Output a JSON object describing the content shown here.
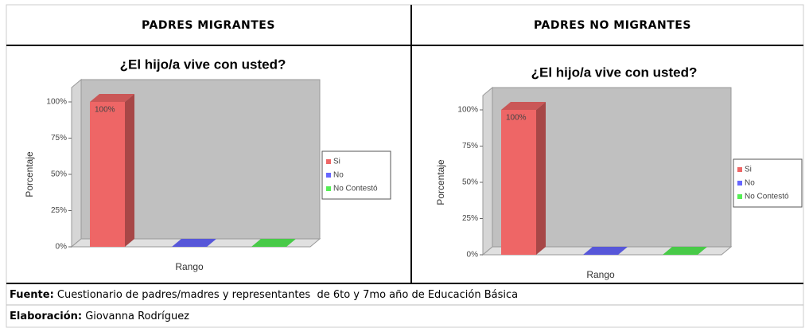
{
  "headers": [
    "PADRES MIGRANTES",
    "PADRES NO MIGRANTES"
  ],
  "chart_data": [
    {
      "type": "bar3d",
      "title": "¿El hijo/a vive con usted?",
      "ylabel": "Porcentaje",
      "xlabel": "Rango",
      "ylim": [
        0,
        100
      ],
      "yticks": [
        {
          "value": 0,
          "label": "0%"
        },
        {
          "value": 25,
          "label": "25%"
        },
        {
          "value": 50,
          "label": "50%"
        },
        {
          "value": 75,
          "label": "75%"
        },
        {
          "value": 100,
          "label": "100%"
        }
      ],
      "series": [
        {
          "name": "Si",
          "color": "#ee6666",
          "values": [
            100
          ],
          "value_labels": [
            "100%"
          ]
        },
        {
          "name": "No",
          "color": "#6666ff",
          "values": [
            0
          ]
        },
        {
          "name": "No Contestó",
          "color": "#55ee55",
          "values": [
            0
          ]
        }
      ]
    },
    {
      "type": "bar3d",
      "title": "¿El hijo/a vive con usted?",
      "ylabel": "Porcentaje",
      "xlabel": "Rango",
      "ylim": [
        0,
        100
      ],
      "yticks": [
        {
          "value": 0,
          "label": "0%"
        },
        {
          "value": 25,
          "label": "25%"
        },
        {
          "value": 50,
          "label": "50%"
        },
        {
          "value": 75,
          "label": "75%"
        },
        {
          "value": 100,
          "label": "100%"
        }
      ],
      "series": [
        {
          "name": "Si",
          "color": "#ee6666",
          "values": [
            100
          ],
          "value_labels": [
            "100%"
          ]
        },
        {
          "name": "No",
          "color": "#6666ff",
          "values": [
            0
          ]
        },
        {
          "name": "No Contestó",
          "color": "#55ee55",
          "values": [
            0
          ]
        }
      ]
    }
  ],
  "footer": {
    "source": {
      "label": "Fuente:",
      "text": " Cuestionario de padres/madres y representantes  de 6to y 7mo año de Educación Básica"
    },
    "author": {
      "label": "Elaboración:",
      "text": " Giovanna Rodríguez"
    }
  }
}
